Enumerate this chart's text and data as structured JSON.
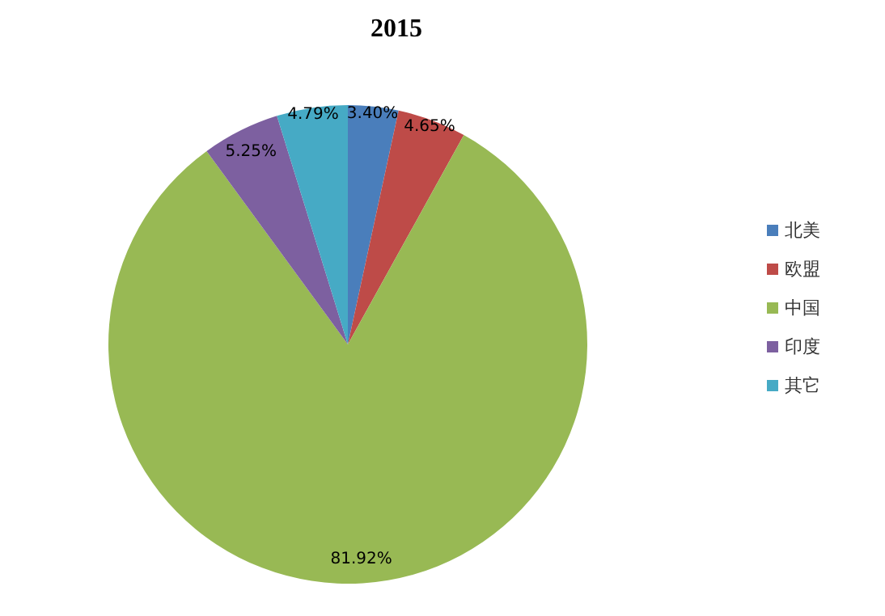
{
  "chart_data": {
    "type": "pie",
    "title": "2015",
    "categories": [
      "北美",
      "欧盟",
      "中国",
      "印度",
      "其它"
    ],
    "values": [
      3.4,
      4.65,
      81.92,
      5.25,
      4.79
    ],
    "value_labels": [
      "3.40%",
      "4.65%",
      "81.92%",
      "5.25%",
      "4.79%"
    ],
    "colors": [
      "#4a7ebb",
      "#be4b48",
      "#98b954",
      "#7d60a0",
      "#46aac5"
    ],
    "legend": "right"
  }
}
